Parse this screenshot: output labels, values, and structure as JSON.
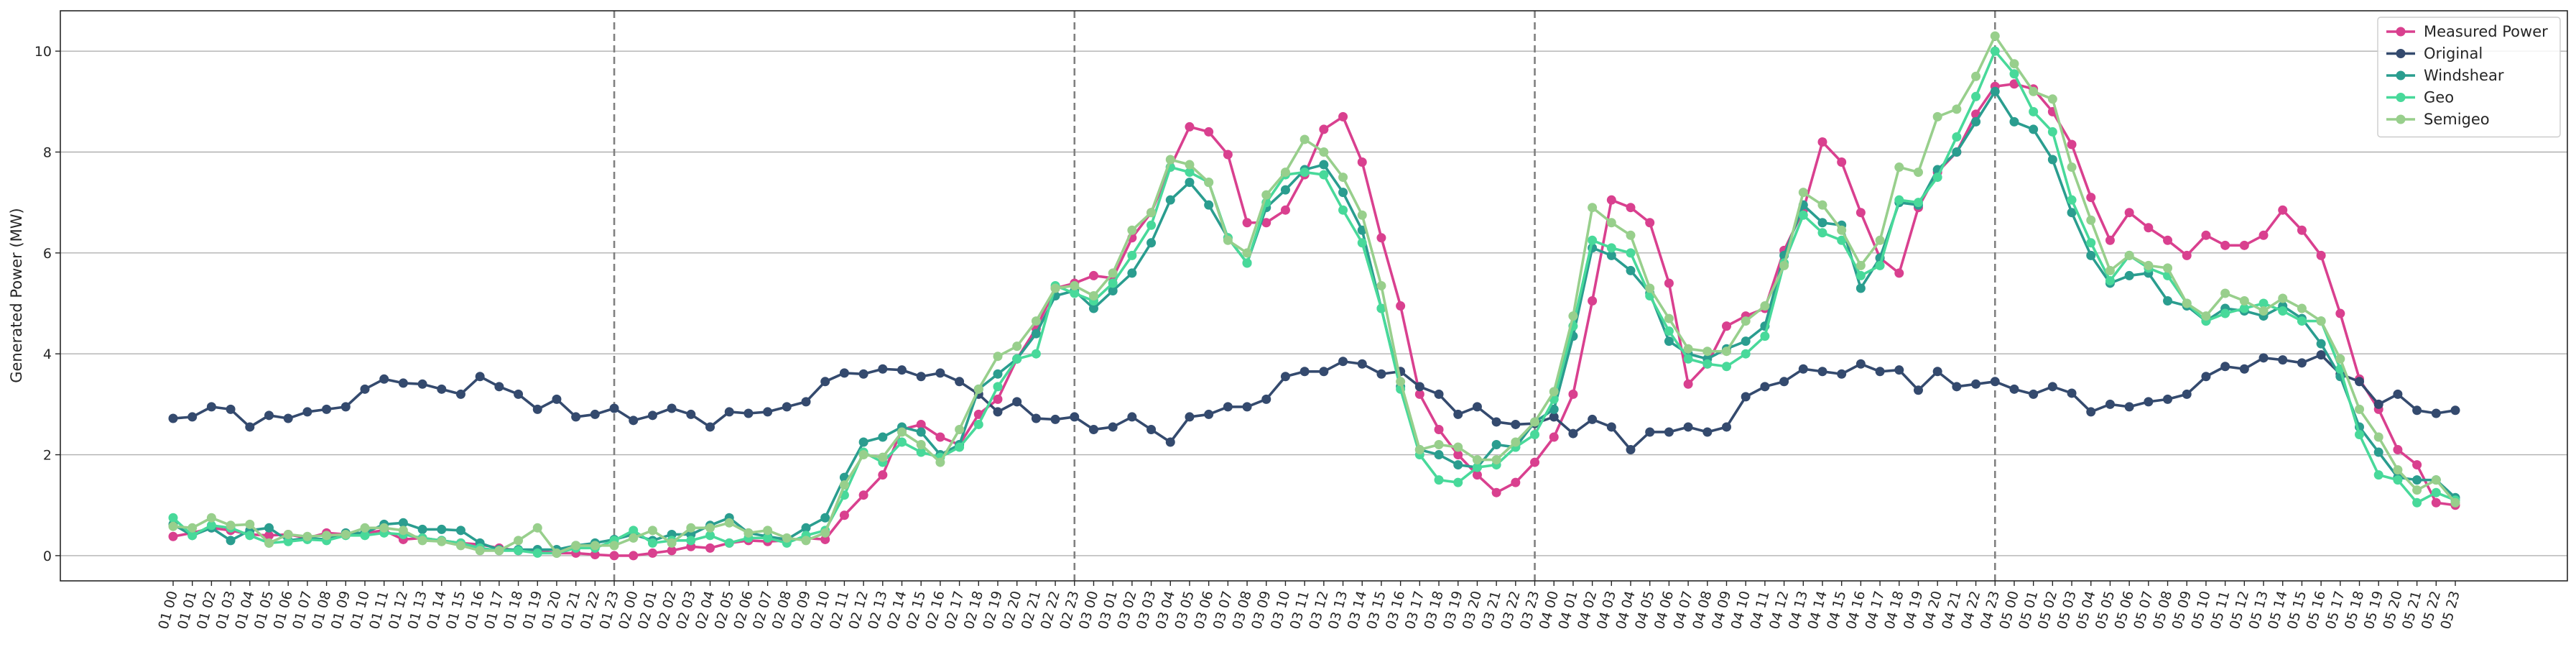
{
  "chart_data": {
    "type": "line",
    "ylabel": "Generated Power (MW)",
    "xlabel": "",
    "ylim": [
      -0.5,
      10.8
    ],
    "yticks": [
      0,
      2,
      4,
      6,
      8,
      10
    ],
    "grid": "horizontal",
    "legend_placement": "top-right",
    "day_separators": [
      "01 23",
      "02 23",
      "03 23",
      "04 23"
    ],
    "categories": [
      "01 00",
      "01 01",
      "01 02",
      "01 03",
      "01 04",
      "01 05",
      "01 06",
      "01 07",
      "01 08",
      "01 09",
      "01 10",
      "01 11",
      "01 12",
      "01 13",
      "01 14",
      "01 15",
      "01 16",
      "01 17",
      "01 18",
      "01 19",
      "01 20",
      "01 21",
      "01 22",
      "01 23",
      "02 00",
      "02 01",
      "02 02",
      "02 03",
      "02 04",
      "02 05",
      "02 06",
      "02 07",
      "02 08",
      "02 09",
      "02 10",
      "02 11",
      "02 12",
      "02 13",
      "02 14",
      "02 15",
      "02 16",
      "02 17",
      "02 18",
      "02 19",
      "02 20",
      "02 21",
      "02 22",
      "02 23",
      "03 00",
      "03 01",
      "03 02",
      "03 03",
      "03 04",
      "03 05",
      "03 06",
      "03 07",
      "03 08",
      "03 09",
      "03 10",
      "03 11",
      "03 12",
      "03 13",
      "03 14",
      "03 15",
      "03 16",
      "03 17",
      "03 18",
      "03 19",
      "03 20",
      "03 21",
      "03 22",
      "03 23",
      "04 00",
      "04 01",
      "04 02",
      "04 03",
      "04 04",
      "04 05",
      "04 06",
      "04 07",
      "04 08",
      "04 09",
      "04 10",
      "04 11",
      "04 12",
      "04 13",
      "04 14",
      "04 15",
      "04 16",
      "04 17",
      "04 18",
      "04 19",
      "04 20",
      "04 21",
      "04 22",
      "04 23",
      "05 00",
      "05 01",
      "05 02",
      "05 03",
      "05 04",
      "05 05",
      "05 06",
      "05 07",
      "05 08",
      "05 09",
      "05 10",
      "05 11",
      "05 12",
      "05 13",
      "05 14",
      "05 15",
      "05 16",
      "05 17",
      "05 18",
      "05 19",
      "05 20",
      "05 21",
      "05 22",
      "05 23"
    ],
    "series": [
      {
        "name": "Measured Power",
        "color": "#d9408f",
        "values": [
          0.38,
          0.45,
          0.55,
          0.5,
          0.42,
          0.4,
          0.42,
          0.35,
          0.45,
          0.42,
          0.45,
          0.5,
          0.32,
          0.35,
          0.3,
          0.25,
          0.22,
          0.15,
          0.1,
          0.1,
          0.05,
          0.05,
          0.02,
          0.0,
          0.0,
          0.05,
          0.1,
          0.18,
          0.15,
          0.25,
          0.3,
          0.28,
          0.3,
          0.35,
          0.32,
          0.8,
          1.2,
          1.6,
          2.5,
          2.6,
          2.35,
          2.2,
          2.8,
          3.1,
          3.9,
          4.5,
          5.3,
          5.4,
          5.55,
          5.5,
          6.3,
          6.8,
          7.7,
          8.5,
          8.4,
          7.95,
          6.6,
          6.6,
          6.85,
          7.55,
          8.45,
          8.7,
          7.8,
          6.3,
          4.95,
          3.2,
          2.5,
          2.0,
          1.6,
          1.25,
          1.45,
          1.85,
          2.35,
          3.2,
          5.05,
          7.05,
          6.9,
          6.6,
          5.4,
          3.4,
          3.8,
          4.55,
          4.75,
          4.9,
          6.05,
          6.85,
          8.2,
          7.8,
          6.8,
          5.9,
          5.6,
          6.9,
          7.6,
          8.0,
          8.75,
          9.3,
          9.35,
          9.25,
          8.8,
          8.15,
          7.1,
          6.25,
          6.8,
          6.5,
          6.25,
          5.95,
          6.35,
          6.15,
          6.15,
          6.35,
          6.85,
          6.45,
          5.95,
          4.8,
          3.5,
          2.9,
          2.1,
          1.8,
          1.05,
          1.0
        ]
      },
      {
        "name": "Original",
        "color": "#344a6e",
        "values": [
          2.72,
          2.75,
          2.95,
          2.9,
          2.55,
          2.78,
          2.72,
          2.85,
          2.9,
          2.95,
          3.3,
          3.5,
          3.42,
          3.4,
          3.3,
          3.2,
          3.55,
          3.35,
          3.2,
          2.9,
          3.1,
          2.75,
          2.8,
          2.92,
          2.68,
          2.78,
          2.92,
          2.8,
          2.55,
          2.85,
          2.82,
          2.85,
          2.95,
          3.05,
          3.45,
          3.62,
          3.6,
          3.7,
          3.68,
          3.55,
          3.62,
          3.45,
          3.2,
          2.85,
          3.05,
          2.72,
          2.7,
          2.75,
          2.5,
          2.55,
          2.75,
          2.5,
          2.25,
          2.75,
          2.8,
          2.95,
          2.95,
          3.1,
          3.55,
          3.65,
          3.65,
          3.85,
          3.8,
          3.6,
          3.65,
          3.35,
          3.2,
          2.8,
          2.95,
          2.65,
          2.6,
          2.62,
          2.75,
          2.42,
          2.7,
          2.55,
          2.1,
          2.45,
          2.45,
          2.55,
          2.45,
          2.55,
          3.15,
          3.35,
          3.45,
          3.7,
          3.65,
          3.6,
          3.8,
          3.65,
          3.68,
          3.28,
          3.65,
          3.35,
          3.4,
          3.45,
          3.3,
          3.2,
          3.35,
          3.22,
          2.85,
          3.0,
          2.95,
          3.05,
          3.1,
          3.2,
          3.55,
          3.75,
          3.7,
          3.92,
          3.88,
          3.82,
          3.98,
          3.6,
          3.45,
          3.0,
          3.2,
          2.88,
          2.82,
          2.88
        ]
      },
      {
        "name": "Windshear",
        "color": "#2a9d8f",
        "values": [
          0.62,
          0.4,
          0.55,
          0.3,
          0.5,
          0.55,
          0.3,
          0.35,
          0.32,
          0.45,
          0.45,
          0.62,
          0.65,
          0.52,
          0.52,
          0.5,
          0.25,
          0.12,
          0.12,
          0.12,
          0.12,
          0.2,
          0.25,
          0.32,
          0.42,
          0.3,
          0.42,
          0.42,
          0.6,
          0.75,
          0.45,
          0.38,
          0.32,
          0.55,
          0.75,
          1.55,
          2.25,
          2.35,
          2.55,
          2.45,
          2.0,
          2.2,
          3.3,
          3.6,
          3.9,
          4.4,
          5.15,
          5.25,
          4.9,
          5.25,
          5.6,
          6.2,
          7.05,
          7.4,
          6.95,
          6.3,
          5.8,
          6.9,
          7.25,
          7.65,
          7.75,
          7.2,
          6.45,
          4.9,
          3.35,
          2.1,
          2.0,
          1.8,
          1.75,
          2.2,
          2.15,
          2.65,
          2.9,
          4.35,
          6.1,
          5.95,
          5.65,
          5.2,
          4.25,
          4.0,
          3.9,
          4.1,
          4.25,
          4.55,
          5.95,
          6.95,
          6.6,
          6.55,
          5.3,
          5.9,
          7.0,
          6.95,
          7.65,
          8.0,
          8.6,
          9.2,
          8.6,
          8.45,
          7.85,
          6.8,
          5.95,
          5.4,
          5.55,
          5.6,
          5.05,
          4.95,
          4.65,
          4.9,
          4.85,
          4.75,
          4.95,
          4.7,
          4.2,
          3.55,
          2.55,
          2.05,
          1.55,
          1.5,
          1.5,
          1.15
        ]
      },
      {
        "name": "Geo",
        "color": "#48d99a",
        "values": [
          0.75,
          0.4,
          0.6,
          0.55,
          0.4,
          0.25,
          0.28,
          0.32,
          0.3,
          0.4,
          0.4,
          0.45,
          0.42,
          0.35,
          0.3,
          0.25,
          0.15,
          0.1,
          0.1,
          0.05,
          0.05,
          0.15,
          0.15,
          0.3,
          0.5,
          0.25,
          0.3,
          0.3,
          0.4,
          0.25,
          0.35,
          0.35,
          0.25,
          0.4,
          0.5,
          1.2,
          2.05,
          1.85,
          2.25,
          2.05,
          1.95,
          2.15,
          2.6,
          3.35,
          3.9,
          4.0,
          5.35,
          5.2,
          5.05,
          5.4,
          5.95,
          6.55,
          7.7,
          7.6,
          7.4,
          6.3,
          5.8,
          7.0,
          7.55,
          7.6,
          7.55,
          6.85,
          6.2,
          4.9,
          3.3,
          2.0,
          1.5,
          1.45,
          1.75,
          1.8,
          2.15,
          2.4,
          3.1,
          4.55,
          6.25,
          6.1,
          6.0,
          5.15,
          4.45,
          3.9,
          3.8,
          3.75,
          4.0,
          4.35,
          5.8,
          6.75,
          6.4,
          6.25,
          5.55,
          5.75,
          7.05,
          7.0,
          7.5,
          8.3,
          9.1,
          10.0,
          9.55,
          8.8,
          8.4,
          7.05,
          6.2,
          5.45,
          5.95,
          5.7,
          5.55,
          5.0,
          4.65,
          4.8,
          4.9,
          5.0,
          4.85,
          4.65,
          4.65,
          3.7,
          2.4,
          1.6,
          1.5,
          1.05,
          1.25,
          1.1
        ]
      },
      {
        "name": "Semigeo",
        "color": "#98cf8c",
        "values": [
          0.58,
          0.55,
          0.75,
          0.6,
          0.62,
          0.25,
          0.42,
          0.38,
          0.4,
          0.42,
          0.55,
          0.55,
          0.5,
          0.3,
          0.28,
          0.2,
          0.1,
          0.1,
          0.3,
          0.55,
          0.05,
          0.2,
          0.2,
          0.2,
          0.35,
          0.5,
          0.25,
          0.55,
          0.55,
          0.65,
          0.45,
          0.5,
          0.35,
          0.3,
          0.45,
          1.4,
          2.0,
          1.95,
          2.45,
          2.2,
          1.85,
          2.5,
          3.3,
          3.95,
          4.15,
          4.65,
          5.3,
          5.35,
          5.15,
          5.6,
          6.45,
          6.8,
          7.85,
          7.75,
          7.4,
          6.25,
          6.0,
          7.15,
          7.6,
          8.25,
          8.0,
          7.5,
          6.75,
          5.35,
          3.45,
          2.1,
          2.2,
          2.15,
          1.9,
          1.9,
          2.25,
          2.65,
          3.25,
          4.75,
          6.9,
          6.6,
          6.35,
          5.3,
          4.7,
          4.1,
          4.05,
          4.05,
          4.65,
          4.95,
          5.75,
          7.2,
          6.95,
          6.45,
          5.75,
          6.25,
          7.7,
          7.6,
          8.7,
          8.85,
          9.5,
          10.3,
          9.75,
          9.2,
          9.05,
          7.7,
          6.65,
          5.65,
          5.95,
          5.75,
          5.7,
          5.0,
          4.75,
          5.2,
          5.05,
          4.85,
          5.1,
          4.9,
          4.65,
          3.9,
          2.9,
          2.35,
          1.7,
          1.3,
          1.5,
          1.05
        ]
      }
    ]
  }
}
